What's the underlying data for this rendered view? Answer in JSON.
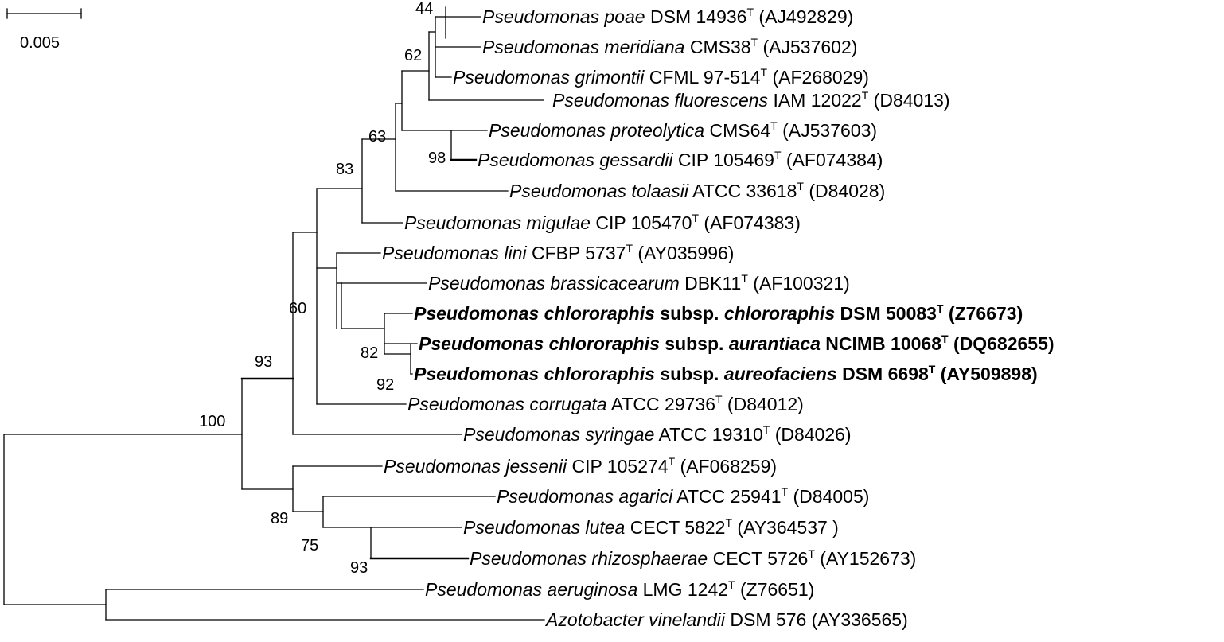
{
  "scale_bar": {
    "label": "0.005"
  },
  "taxa": [
    {
      "genus": "Pseudomonas",
      "species": "poae",
      "subsp": "",
      "strain": "DSM 14936",
      "type_strain": "T",
      "accession": "(AJ492829)",
      "bold": false
    },
    {
      "genus": "Pseudomonas",
      "species": "meridiana",
      "subsp": "",
      "strain": "CMS38",
      "type_strain": "T",
      "accession": "(AJ537602)",
      "bold": false
    },
    {
      "genus": "Pseudomonas",
      "species": "grimontii",
      "subsp": "",
      "strain": "CFML 97-514",
      "type_strain": "T",
      "accession": "(AF268029)",
      "bold": false
    },
    {
      "genus": "Pseudomonas",
      "species": "fluorescens",
      "subsp": "",
      "strain": "IAM 12022",
      "type_strain": "T",
      "accession": "(D84013)",
      "bold": false
    },
    {
      "genus": "Pseudomonas",
      "species": "proteolytica",
      "subsp": "",
      "strain": "CMS64",
      "type_strain": "T",
      "accession": "(AJ537603)",
      "bold": false
    },
    {
      "genus": "Pseudomonas",
      "species": "gessardii",
      "subsp": "",
      "strain": "CIP 105469",
      "type_strain": "T",
      "accession": "(AF074384)",
      "bold": false
    },
    {
      "genus": "Pseudomonas",
      "species": "tolaasii",
      "subsp": "",
      "strain": "ATCC 33618",
      "type_strain": "T",
      "accession": "(D84028)",
      "bold": false
    },
    {
      "genus": "Pseudomonas",
      "species": "migulae",
      "subsp": "",
      "strain": "CIP 105470",
      "type_strain": "T",
      "accession": "(AF074383)",
      "bold": false
    },
    {
      "genus": "Pseudomonas",
      "species": "lini",
      "subsp": "",
      "strain": "CFBP 5737",
      "type_strain": "T",
      "accession": "(AY035996)",
      "bold": false
    },
    {
      "genus": "Pseudomonas",
      "species": "brassicacearum",
      "subsp": "",
      "strain": "DBK11",
      "type_strain": "T",
      "accession": "(AF100321)",
      "bold": false
    },
    {
      "genus": "Pseudomonas",
      "species": "chlororaphis",
      "subsp": "chlororaphis",
      "strain": "DSM 50083",
      "type_strain": "T",
      "accession": "(Z76673)",
      "bold": true
    },
    {
      "genus": "Pseudomonas",
      "species": "chlororaphis",
      "subsp": "aurantiaca",
      "strain": "NCIMB 10068",
      "type_strain": "T",
      "accession": "(DQ682655)",
      "bold": true
    },
    {
      "genus": "Pseudomonas",
      "species": "chlororaphis",
      "subsp": "aureofaciens",
      "strain": "DSM 6698",
      "type_strain": "T",
      "accession": "(AY509898)",
      "bold": true
    },
    {
      "genus": "Pseudomonas",
      "species": "corrugata",
      "subsp": "",
      "strain": "ATCC 29736",
      "type_strain": "T",
      "accession": "(D84012)",
      "bold": false
    },
    {
      "genus": "Pseudomonas",
      "species": "syringae",
      "subsp": "",
      "strain": "ATCC 19310",
      "type_strain": "T",
      "accession": "(D84026)",
      "bold": false
    },
    {
      "genus": "Pseudomonas",
      "species": "jessenii",
      "subsp": "",
      "strain": "CIP 105274",
      "type_strain": "T",
      "accession": "(AF068259)",
      "bold": false
    },
    {
      "genus": "Pseudomonas",
      "species": "agarici",
      "subsp": "",
      "strain": "ATCC 25941",
      "type_strain": "T",
      "accession": "(D84005)",
      "bold": false
    },
    {
      "genus": "Pseudomonas",
      "species": "lutea",
      "subsp": "",
      "strain": "CECT 5822",
      "type_strain": "T",
      "accession": "(AY364537 )",
      "bold": false
    },
    {
      "genus": "Pseudomonas",
      "species": "rhizosphaerae",
      "subsp": "",
      "strain": "CECT 5726",
      "type_strain": "T",
      "accession": "(AY152673)",
      "bold": false
    },
    {
      "genus": "Pseudomonas",
      "species": "aeruginosa",
      "subsp": "",
      "strain": "LMG 1242",
      "type_strain": "T",
      "accession": "(Z76651)",
      "bold": false
    },
    {
      "genus": "Azotobacter",
      "species": "vinelandii",
      "subsp": "",
      "strain": "DSM 576",
      "type_strain": "",
      "accession": "(AY336565)",
      "bold": false
    }
  ],
  "bootstrap": {
    "b44": "44",
    "b62": "62",
    "b63": "63",
    "b98": "98",
    "b83": "83",
    "b60": "60",
    "b82": "82",
    "b92": "92",
    "b93": "93",
    "b100": "100",
    "b89": "89",
    "b75": "75",
    "b93b": "93"
  }
}
